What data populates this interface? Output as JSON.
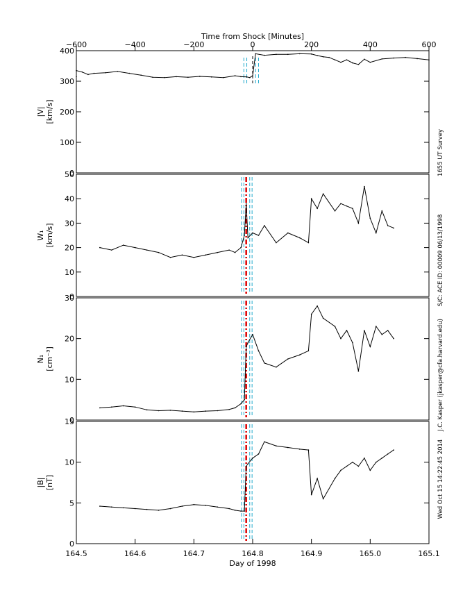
{
  "top_axis": {
    "title": "Time from Shock [Minutes]",
    "range": [
      -600,
      600
    ],
    "ticks": [
      -600,
      -400,
      -200,
      0,
      200,
      400,
      600
    ],
    "tick_labels": [
      "−600",
      "−400",
      "−200",
      "0",
      "200",
      "400",
      "600"
    ]
  },
  "bottom_axis": {
    "title": "Day of 1998",
    "range": [
      164.5,
      165.1
    ],
    "ticks": [
      164.5,
      164.6,
      164.7,
      164.8,
      164.9,
      165.0,
      165.1
    ],
    "tick_labels": [
      "164.5",
      "164.6",
      "164.7",
      "164.8",
      "164.9",
      "165.0",
      "165.1"
    ]
  },
  "side_annotations": [
    "1655 UT Survey",
    "S/C: ACE ID: 00009 06/13/1998",
    "J.C. Kasper (jkasper@cfa.harvard.edu)",
    "Wed Oct 15 14:22:45 2014"
  ],
  "colors": {
    "trace": "#000000",
    "shock_line": "#dd0000",
    "interval_line": "#22aacc",
    "axes": "#000000"
  },
  "chart_data": [
    {
      "type": "line",
      "panel": "speed",
      "ylabel": "|V|",
      "yunit": "[km/s]",
      "ylim": [
        0,
        400
      ],
      "yticks": [
        0,
        100,
        200,
        300,
        400
      ],
      "shock_minutes": 0,
      "interval_minutes": [
        -30,
        -20,
        10,
        20
      ],
      "x_minutes": [
        -620,
        -600,
        -580,
        -560,
        -540,
        -500,
        -460,
        -420,
        -380,
        -340,
        -300,
        -260,
        -220,
        -180,
        -140,
        -100,
        -60,
        -40,
        -20,
        -10,
        0,
        10,
        40,
        80,
        120,
        160,
        200,
        220,
        240,
        260,
        280,
        300,
        320,
        340,
        360,
        380,
        400,
        440,
        480,
        520,
        560,
        600
      ],
      "y": [
        315,
        335,
        330,
        322,
        326,
        328,
        332,
        326,
        320,
        313,
        312,
        315,
        313,
        316,
        314,
        312,
        318,
        315,
        314,
        312,
        318,
        390,
        385,
        388,
        388,
        390,
        389,
        384,
        380,
        378,
        370,
        362,
        370,
        360,
        355,
        372,
        362,
        373,
        376,
        378,
        374,
        370
      ]
    },
    {
      "type": "line",
      "panel": "thermal_speed",
      "ylabel": "W₁",
      "yunit": "[km/s]",
      "ylim": [
        0,
        50
      ],
      "yticks": [
        0,
        10,
        20,
        30,
        40,
        50
      ],
      "shock_day": 164.789,
      "interval_day": [
        164.781,
        164.785,
        164.795,
        164.799
      ],
      "x_day": [
        164.54,
        164.56,
        164.58,
        164.6,
        164.62,
        164.64,
        164.66,
        164.68,
        164.7,
        164.72,
        164.74,
        164.76,
        164.77,
        164.78,
        164.786,
        164.789,
        164.792,
        164.8,
        164.81,
        164.82,
        164.84,
        164.86,
        164.88,
        164.895,
        164.9,
        164.91,
        164.92,
        164.94,
        164.95,
        164.96,
        164.97,
        164.98,
        164.99,
        165.0,
        165.01,
        165.02,
        165.03,
        165.04
      ],
      "y": [
        20,
        19,
        21,
        20,
        19,
        18,
        16,
        17,
        16,
        17,
        18,
        19,
        18,
        20,
        25,
        38,
        24,
        26,
        25,
        29,
        22,
        26,
        24,
        22,
        40,
        36,
        42,
        35,
        38,
        37,
        36,
        30,
        45,
        32,
        26,
        35,
        29,
        28
      ]
    },
    {
      "type": "line",
      "panel": "density",
      "ylabel": "N₁",
      "yunit": "[cm⁻³]",
      "ylim": [
        0,
        30
      ],
      "yticks": [
        0,
        10,
        20,
        30
      ],
      "shock_day": 164.789,
      "interval_day": [
        164.781,
        164.785,
        164.795,
        164.799
      ],
      "x_day": [
        164.54,
        164.56,
        164.58,
        164.6,
        164.62,
        164.64,
        164.66,
        164.68,
        164.7,
        164.72,
        164.74,
        164.76,
        164.77,
        164.78,
        164.786,
        164.789,
        164.792,
        164.8,
        164.81,
        164.82,
        164.84,
        164.86,
        164.88,
        164.895,
        164.9,
        164.91,
        164.92,
        164.94,
        164.95,
        164.96,
        164.97,
        164.98,
        164.99,
        165.0,
        165.01,
        165.02,
        165.03,
        165.04
      ],
      "y": [
        3,
        3.2,
        3.5,
        3.2,
        2.5,
        2.3,
        2.4,
        2.2,
        2.0,
        2.2,
        2.3,
        2.6,
        3.0,
        4.0,
        5.0,
        18.0,
        19.0,
        21.0,
        17.0,
        14.0,
        13.0,
        15.0,
        16.0,
        17.0,
        26.0,
        28.0,
        25.0,
        23.0,
        20.0,
        22.0,
        19.0,
        12.0,
        22.0,
        18.0,
        23.0,
        21.0,
        22.0,
        20.0
      ]
    },
    {
      "type": "line",
      "panel": "magnetic_field",
      "ylabel": "|B|",
      "yunit": "[nT]",
      "ylim": [
        0,
        15
      ],
      "yticks": [
        0,
        5,
        10,
        15
      ],
      "shock_day": 164.789,
      "interval_day": [
        164.781,
        164.785,
        164.795,
        164.799
      ],
      "x_day": [
        164.54,
        164.56,
        164.58,
        164.6,
        164.62,
        164.64,
        164.66,
        164.68,
        164.7,
        164.72,
        164.74,
        164.76,
        164.77,
        164.78,
        164.786,
        164.789,
        164.792,
        164.8,
        164.81,
        164.82,
        164.84,
        164.86,
        164.88,
        164.895,
        164.9,
        164.91,
        164.92,
        164.94,
        164.95,
        164.96,
        164.97,
        164.98,
        164.99,
        165.0,
        165.01,
        165.02,
        165.03,
        165.04
      ],
      "y": [
        4.6,
        4.5,
        4.4,
        4.3,
        4.2,
        4.1,
        4.3,
        4.6,
        4.8,
        4.7,
        4.5,
        4.3,
        4.1,
        4.0,
        4.0,
        9.5,
        9.8,
        10.5,
        11.0,
        12.5,
        12.0,
        11.8,
        11.6,
        11.5,
        6.0,
        8.0,
        5.5,
        8.0,
        9.0,
        9.5,
        10.0,
        9.5,
        10.5,
        9.0,
        10.0,
        10.5,
        11.0,
        11.5
      ]
    }
  ]
}
